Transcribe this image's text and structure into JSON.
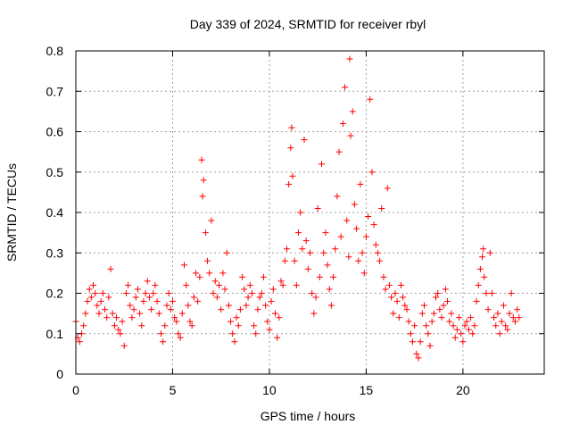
{
  "chart_data": {
    "type": "scatter",
    "title": "Day 339 of 2024, SRMTID for receiver rbyl",
    "xlabel": "GPS time / hours",
    "ylabel": "SRMTID / TECUs",
    "xlim": [
      0,
      24.2
    ],
    "ylim": [
      0,
      0.8
    ],
    "xticks": [
      0,
      5,
      10,
      15,
      20
    ],
    "xtick_labels": [
      "0",
      "5",
      "10",
      "15",
      "20"
    ],
    "yticks": [
      0,
      0.1,
      0.2,
      0.3,
      0.4,
      0.5,
      0.6,
      0.7,
      0.8
    ],
    "ytick_labels": [
      "0",
      "0.1",
      "0.2",
      "0.3",
      "0.4",
      "0.5",
      "0.6",
      "0.7",
      "0.8"
    ],
    "grid": true,
    "marker": "+",
    "color": "#ff0000",
    "series": [
      {
        "name": "SRMTID",
        "points": [
          [
            0.0,
            0.13
          ],
          [
            0.1,
            0.09
          ],
          [
            0.2,
            0.08
          ],
          [
            0.3,
            0.1
          ],
          [
            0.4,
            0.12
          ],
          [
            0.5,
            0.15
          ],
          [
            0.6,
            0.18
          ],
          [
            0.7,
            0.21
          ],
          [
            0.8,
            0.19
          ],
          [
            0.9,
            0.22
          ],
          [
            1.0,
            0.2
          ],
          [
            1.1,
            0.17
          ],
          [
            1.2,
            0.15
          ],
          [
            1.3,
            0.18
          ],
          [
            1.4,
            0.2
          ],
          [
            1.5,
            0.16
          ],
          [
            1.6,
            0.14
          ],
          [
            1.7,
            0.19
          ],
          [
            1.8,
            0.26
          ],
          [
            1.9,
            0.15
          ],
          [
            2.0,
            0.12
          ],
          [
            2.1,
            0.14
          ],
          [
            2.2,
            0.11
          ],
          [
            2.3,
            0.1
          ],
          [
            2.4,
            0.13
          ],
          [
            2.5,
            0.07
          ],
          [
            2.6,
            0.2
          ],
          [
            2.7,
            0.22
          ],
          [
            2.8,
            0.17
          ],
          [
            2.9,
            0.14
          ],
          [
            3.0,
            0.16
          ],
          [
            3.1,
            0.19
          ],
          [
            3.2,
            0.21
          ],
          [
            3.3,
            0.15
          ],
          [
            3.4,
            0.12
          ],
          [
            3.5,
            0.18
          ],
          [
            3.6,
            0.2
          ],
          [
            3.7,
            0.23
          ],
          [
            3.8,
            0.19
          ],
          [
            3.9,
            0.16
          ],
          [
            4.0,
            0.2
          ],
          [
            4.1,
            0.22
          ],
          [
            4.2,
            0.18
          ],
          [
            4.3,
            0.15
          ],
          [
            4.4,
            0.1
          ],
          [
            4.5,
            0.08
          ],
          [
            4.6,
            0.12
          ],
          [
            4.7,
            0.17
          ],
          [
            4.8,
            0.2
          ],
          [
            4.9,
            0.16
          ],
          [
            5.0,
            0.18
          ],
          [
            5.1,
            0.14
          ],
          [
            5.2,
            0.13
          ],
          [
            5.3,
            0.1
          ],
          [
            5.4,
            0.09
          ],
          [
            5.5,
            0.15
          ],
          [
            5.6,
            0.27
          ],
          [
            5.7,
            0.22
          ],
          [
            5.8,
            0.17
          ],
          [
            5.9,
            0.13
          ],
          [
            6.0,
            0.12
          ],
          [
            6.1,
            0.19
          ],
          [
            6.2,
            0.25
          ],
          [
            6.3,
            0.18
          ],
          [
            6.4,
            0.24
          ],
          [
            6.5,
            0.53
          ],
          [
            6.55,
            0.44
          ],
          [
            6.6,
            0.48
          ],
          [
            6.7,
            0.35
          ],
          [
            6.8,
            0.28
          ],
          [
            6.9,
            0.25
          ],
          [
            7.0,
            0.38
          ],
          [
            7.1,
            0.2
          ],
          [
            7.2,
            0.23
          ],
          [
            7.3,
            0.19
          ],
          [
            7.4,
            0.22
          ],
          [
            7.5,
            0.16
          ],
          [
            7.6,
            0.25
          ],
          [
            7.7,
            0.21
          ],
          [
            7.8,
            0.3
          ],
          [
            7.9,
            0.17
          ],
          [
            8.0,
            0.13
          ],
          [
            8.1,
            0.1
          ],
          [
            8.2,
            0.08
          ],
          [
            8.3,
            0.14
          ],
          [
            8.4,
            0.12
          ],
          [
            8.5,
            0.16
          ],
          [
            8.6,
            0.24
          ],
          [
            8.7,
            0.21
          ],
          [
            8.8,
            0.17
          ],
          [
            8.9,
            0.19
          ],
          [
            9.0,
            0.22
          ],
          [
            9.1,
            0.2
          ],
          [
            9.2,
            0.12
          ],
          [
            9.3,
            0.1
          ],
          [
            9.4,
            0.16
          ],
          [
            9.5,
            0.19
          ],
          [
            9.6,
            0.2
          ],
          [
            9.7,
            0.24
          ],
          [
            9.8,
            0.17
          ],
          [
            9.9,
            0.13
          ],
          [
            10.0,
            0.11
          ],
          [
            10.1,
            0.18
          ],
          [
            10.2,
            0.21
          ],
          [
            10.3,
            0.15
          ],
          [
            10.4,
            0.09
          ],
          [
            10.5,
            0.14
          ],
          [
            10.6,
            0.23
          ],
          [
            10.7,
            0.22
          ],
          [
            10.8,
            0.28
          ],
          [
            10.9,
            0.31
          ],
          [
            11.0,
            0.47
          ],
          [
            11.1,
            0.56
          ],
          [
            11.15,
            0.61
          ],
          [
            11.2,
            0.49
          ],
          [
            11.3,
            0.28
          ],
          [
            11.4,
            0.22
          ],
          [
            11.5,
            0.35
          ],
          [
            11.6,
            0.4
          ],
          [
            11.7,
            0.31
          ],
          [
            11.8,
            0.58
          ],
          [
            11.9,
            0.33
          ],
          [
            12.0,
            0.26
          ],
          [
            12.1,
            0.3
          ],
          [
            12.2,
            0.2
          ],
          [
            12.3,
            0.15
          ],
          [
            12.4,
            0.19
          ],
          [
            12.5,
            0.41
          ],
          [
            12.6,
            0.24
          ],
          [
            12.7,
            0.52
          ],
          [
            12.8,
            0.3
          ],
          [
            12.9,
            0.35
          ],
          [
            13.0,
            0.27
          ],
          [
            13.1,
            0.21
          ],
          [
            13.2,
            0.17
          ],
          [
            13.3,
            0.24
          ],
          [
            13.4,
            0.31
          ],
          [
            13.5,
            0.44
          ],
          [
            13.6,
            0.55
          ],
          [
            13.7,
            0.34
          ],
          [
            13.8,
            0.62
          ],
          [
            13.9,
            0.71
          ],
          [
            14.0,
            0.38
          ],
          [
            14.1,
            0.29
          ],
          [
            14.15,
            0.78
          ],
          [
            14.2,
            0.59
          ],
          [
            14.3,
            0.65
          ],
          [
            14.4,
            0.42
          ],
          [
            14.5,
            0.36
          ],
          [
            14.6,
            0.28
          ],
          [
            14.7,
            0.47
          ],
          [
            14.8,
            0.3
          ],
          [
            14.9,
            0.25
          ],
          [
            15.0,
            0.34
          ],
          [
            15.1,
            0.39
          ],
          [
            15.2,
            0.68
          ],
          [
            15.3,
            0.5
          ],
          [
            15.4,
            0.37
          ],
          [
            15.5,
            0.32
          ],
          [
            15.6,
            0.3
          ],
          [
            15.7,
            0.28
          ],
          [
            15.8,
            0.41
          ],
          [
            15.9,
            0.24
          ],
          [
            16.0,
            0.21
          ],
          [
            16.1,
            0.46
          ],
          [
            16.2,
            0.22
          ],
          [
            16.3,
            0.19
          ],
          [
            16.4,
            0.15
          ],
          [
            16.5,
            0.2
          ],
          [
            16.6,
            0.18
          ],
          [
            16.7,
            0.14
          ],
          [
            16.8,
            0.22
          ],
          [
            16.9,
            0.19
          ],
          [
            17.0,
            0.17
          ],
          [
            17.1,
            0.16
          ],
          [
            17.2,
            0.13
          ],
          [
            17.3,
            0.1
          ],
          [
            17.4,
            0.08
          ],
          [
            17.5,
            0.12
          ],
          [
            17.6,
            0.05
          ],
          [
            17.7,
            0.04
          ],
          [
            17.8,
            0.08
          ],
          [
            17.9,
            0.15
          ],
          [
            18.0,
            0.17
          ],
          [
            18.1,
            0.12
          ],
          [
            18.2,
            0.1
          ],
          [
            18.3,
            0.07
          ],
          [
            18.4,
            0.13
          ],
          [
            18.5,
            0.15
          ],
          [
            18.6,
            0.19
          ],
          [
            18.7,
            0.2
          ],
          [
            18.8,
            0.16
          ],
          [
            18.9,
            0.14
          ],
          [
            19.0,
            0.17
          ],
          [
            19.1,
            0.21
          ],
          [
            19.2,
            0.18
          ],
          [
            19.3,
            0.13
          ],
          [
            19.4,
            0.15
          ],
          [
            19.5,
            0.12
          ],
          [
            19.6,
            0.09
          ],
          [
            19.7,
            0.11
          ],
          [
            19.8,
            0.14
          ],
          [
            19.9,
            0.1
          ],
          [
            20.0,
            0.08
          ],
          [
            20.1,
            0.12
          ],
          [
            20.2,
            0.13
          ],
          [
            20.3,
            0.11
          ],
          [
            20.4,
            0.14
          ],
          [
            20.5,
            0.1
          ],
          [
            20.6,
            0.12
          ],
          [
            20.7,
            0.18
          ],
          [
            20.8,
            0.22
          ],
          [
            20.9,
            0.26
          ],
          [
            21.0,
            0.29
          ],
          [
            21.05,
            0.31
          ],
          [
            21.1,
            0.24
          ],
          [
            21.2,
            0.2
          ],
          [
            21.3,
            0.16
          ],
          [
            21.4,
            0.3
          ],
          [
            21.5,
            0.2
          ],
          [
            21.6,
            0.14
          ],
          [
            21.7,
            0.12
          ],
          [
            21.8,
            0.15
          ],
          [
            21.9,
            0.1
          ],
          [
            22.0,
            0.13
          ],
          [
            22.1,
            0.17
          ],
          [
            22.2,
            0.12
          ],
          [
            22.3,
            0.11
          ],
          [
            22.4,
            0.15
          ],
          [
            22.5,
            0.2
          ],
          [
            22.6,
            0.14
          ],
          [
            22.7,
            0.13
          ],
          [
            22.8,
            0.16
          ],
          [
            22.9,
            0.14
          ]
        ]
      }
    ]
  }
}
